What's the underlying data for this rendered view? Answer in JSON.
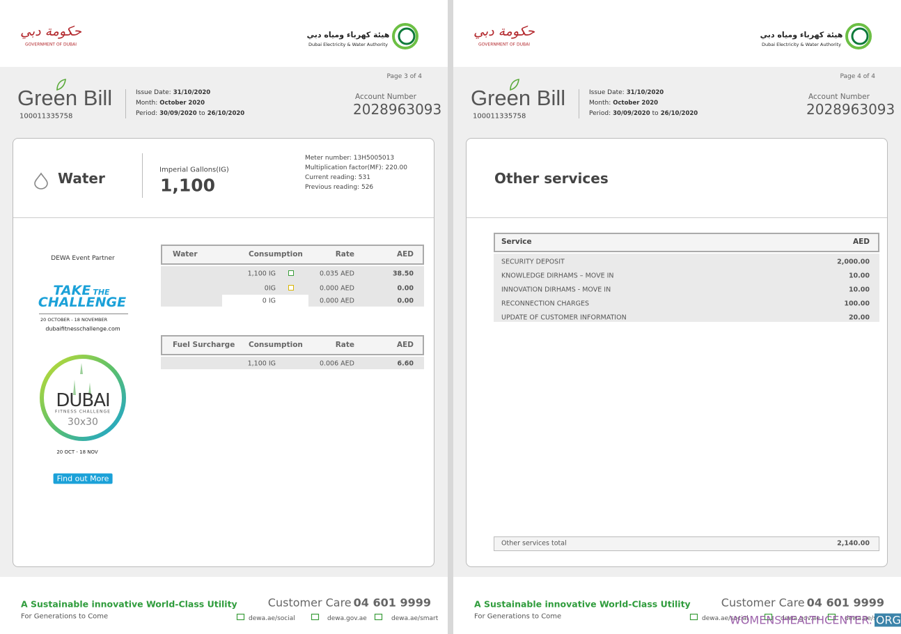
{
  "header": {
    "gov_logo_arabic": "حكومة دبي",
    "gov_logo_english": "GOVERNMENT OF DUBAI",
    "dewa_arabic": "هيئة كهرباء ومياه دبي",
    "dewa_english": "Dubai Electricity & Water Authority"
  },
  "bill": {
    "brand": "Green Bill",
    "bill_number": "100011335758",
    "issue_date_label": "Issue Date:",
    "issue_date": "31/10/2020",
    "month_label": "Month:",
    "month": "October 2020",
    "period_label": "Period:",
    "period_from": "30/09/2020",
    "period_to_word": "to",
    "period_to": "26/10/2020",
    "account_number_label": "Account Number",
    "account_number": "2028963093"
  },
  "pages": [
    {
      "page_label": "Page 3 of 4",
      "water": {
        "title": "Water",
        "unit_label": "Imperial Gallons(IG)",
        "consumption": "1,100",
        "meter_number": "Meter number: 13H5005013",
        "multiplication_factor": "Multiplication factor(MF): 220.00",
        "current_reading": "Current reading: 531",
        "previous_reading": "Previous reading: 526"
      },
      "water_table": {
        "headers": [
          "Water",
          "Consumption",
          "Rate",
          "AED"
        ],
        "rows": [
          [
            "1,100 IG",
            "0.035 AED",
            "38.50"
          ],
          [
            "0IG",
            "0.000 AED",
            "0.00"
          ],
          [
            "0 IG",
            "0.000 AED",
            "0.00"
          ]
        ]
      },
      "fuel_table": {
        "headers": [
          "Fuel Surcharge",
          "Consumption",
          "Rate",
          "AED"
        ],
        "rows": [
          [
            "1,100 IG",
            "0.006 AED",
            "6.60"
          ]
        ]
      },
      "ad": {
        "partner": "DEWA Event Partner",
        "take": "TAKE",
        "the": "THE",
        "challenge": "CHALLENGE",
        "dates": "20 OCTOBER - 18 NOVEMBER",
        "website": "dubaifitnesschallenge.com",
        "badge_city": "DUBAI",
        "badge_subtitle": "FITNESS CHALLENGE",
        "badge_number": "30x30",
        "badge_dates": "20 OCT - 18 NOV",
        "button": "Find out More"
      }
    },
    {
      "page_label": "Page 4 of 4",
      "other_services": {
        "title": "Other services",
        "headers": [
          "Service",
          "AED"
        ],
        "rows": [
          [
            "SECURITY DEPOSIT",
            "2,000.00"
          ],
          [
            "KNOWLEDGE DIRHAMS – MOVE IN",
            "10.00"
          ],
          [
            "INNOVATION DIRHAMS - MOVE IN",
            "10.00"
          ],
          [
            "RECONNECTION CHARGES",
            "100.00"
          ],
          [
            "UPDATE OF CUSTOMER INFORMATION",
            "20.00"
          ]
        ],
        "total_label": "Other services total",
        "total": "2,140.00"
      }
    }
  ],
  "footer": {
    "slogan": "A Sustainable innovative World-Class Utility",
    "tagline": "For Generations to Come",
    "customer_care_label": "Customer Care",
    "customer_care_number": "04 601 9999",
    "links": [
      "dewa.ae/social",
      "dewa.gov.ae",
      "dewa.ae/smart"
    ]
  },
  "watermark": [
    "WOMENSHEALTHCENTER.",
    "ORG"
  ]
}
